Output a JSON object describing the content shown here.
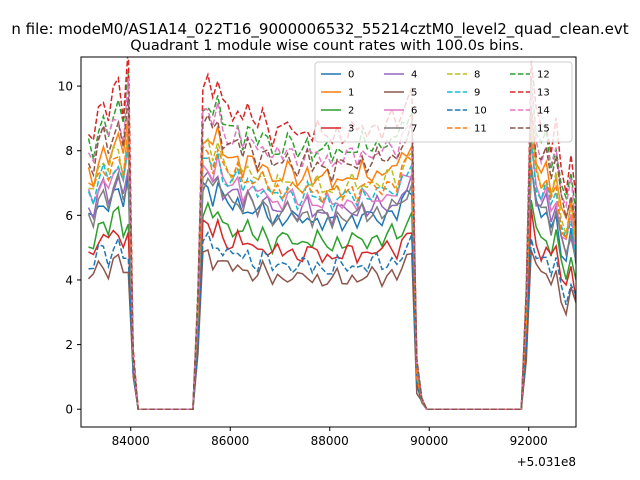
{
  "chart_data": {
    "type": "line",
    "suptitle": "n file: modeM0/AS1A14_022T16_9000006532_55214cztM0_level2_quad_clean.evt",
    "title": "Quadrant 1 module wise count rates with 100.0s bins.",
    "xlabel": "",
    "ylabel": "",
    "x_offset_label": "+5.031e8",
    "xlim": [
      83000,
      92950
    ],
    "ylim": [
      -0.55,
      10.9
    ],
    "xticks": [
      84000,
      86000,
      88000,
      90000,
      92000
    ],
    "xtick_labels": [
      "84000",
      "86000",
      "88000",
      "90000",
      "92000"
    ],
    "yticks": [
      0,
      2,
      4,
      6,
      8,
      10
    ],
    "ytick_labels": [
      "0",
      "2",
      "4",
      "6",
      "8",
      "10"
    ],
    "grid": false,
    "legend_placement": "top-right",
    "legend_columns": 4,
    "profile_y": [
      5.8,
      5.6,
      6.2,
      6.4,
      6.0,
      6.5,
      6.7,
      6.1,
      6.8,
      1.2,
      0.0,
      0.0,
      0.0,
      0.0,
      0.0,
      0.0,
      0.0,
      0.0,
      0.0,
      0.0,
      0.0,
      0.0,
      2.5,
      6.7,
      6.8,
      6.4,
      6.8,
      6.3,
      6.2,
      6.1,
      6.3,
      5.9,
      6.2,
      6.0,
      5.8,
      6.1,
      5.9,
      5.6,
      5.8,
      5.7,
      5.9,
      5.8,
      5.6,
      5.7,
      5.9,
      5.6,
      5.8,
      5.6,
      5.7,
      5.5,
      5.8,
      5.6,
      5.7,
      5.8,
      5.6,
      5.9,
      5.7,
      5.8,
      5.9,
      5.7,
      5.9,
      6.0,
      5.8,
      6.2,
      6.4,
      6.6,
      1.0,
      0.2,
      0.0,
      0.0,
      0.0,
      0.0,
      0.0,
      0.0,
      0.0,
      0.0,
      0.0,
      0.0,
      0.0,
      0.0,
      0.0,
      0.0,
      0.0,
      0.0,
      0.0,
      0.0,
      0.0,
      0.0,
      2.5,
      7.2,
      6.1,
      5.8,
      6.0,
      5.4,
      5.9,
      4.9,
      4.5,
      5.2,
      4.3,
      5.5,
      5.8,
      5.2
    ],
    "spike_a": [
      8,
      23
    ],
    "spike_b": [
      65,
      89
    ],
    "series": [
      {
        "name": "0",
        "color": "#1f77b4",
        "dash": false,
        "offset": 0.15
      },
      {
        "name": "1",
        "color": "#ff7f0e",
        "dash": false,
        "offset": 1.55
      },
      {
        "name": "2",
        "color": "#2ca02c",
        "dash": false,
        "offset": -0.55
      },
      {
        "name": "3",
        "color": "#d62728",
        "dash": false,
        "offset": -0.95
      },
      {
        "name": "4",
        "color": "#9467bd",
        "dash": false,
        "offset": 0.45
      },
      {
        "name": "5",
        "color": "#8c564b",
        "dash": false,
        "offset": -1.75
      },
      {
        "name": "6",
        "color": "#e377c2",
        "dash": false,
        "offset": 0.75
      },
      {
        "name": "7",
        "color": "#7f7f7f",
        "dash": false,
        "offset": 0.3
      },
      {
        "name": "8",
        "color": "#bcbd22",
        "dash": true,
        "offset": 1.25
      },
      {
        "name": "9",
        "color": "#17becf",
        "dash": true,
        "offset": 0.9
      },
      {
        "name": "10",
        "color": "#1f77b4",
        "dash": true,
        "offset": -1.35
      },
      {
        "name": "11",
        "color": "#ff7f0e",
        "dash": true,
        "offset": 1.1
      },
      {
        "name": "12",
        "color": "#2ca02c",
        "dash": true,
        "offset": 2.45
      },
      {
        "name": "13",
        "color": "#d62728",
        "dash": true,
        "offset": 3.0
      },
      {
        "name": "14",
        "color": "#e377c2",
        "dash": true,
        "offset": 2.2
      },
      {
        "name": "15",
        "color": "#8c564b",
        "dash": true,
        "offset": 1.95
      }
    ]
  }
}
